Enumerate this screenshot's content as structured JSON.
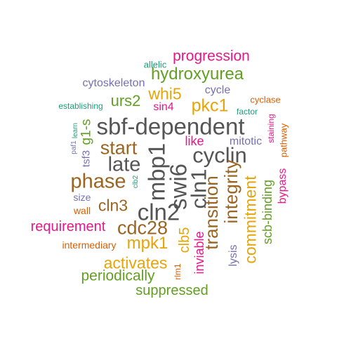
{
  "colors": {
    "gray": "#555555",
    "brown": "#9a6522",
    "green": "#62a023",
    "magenta": "#e6188a",
    "orange": "#e5a50a",
    "teal": "#1b9e77",
    "purple": "#7570b3",
    "rust": "#d95f02"
  },
  "words": [
    {
      "text": "progression",
      "color": "magenta"
    },
    {
      "text": "allelic",
      "color": "teal"
    },
    {
      "text": "hydroxyurea",
      "color": "green"
    },
    {
      "text": "cytoskeleton",
      "color": "purple"
    },
    {
      "text": "whi5",
      "color": "orange"
    },
    {
      "text": "cycle",
      "color": "purple"
    },
    {
      "text": "cyclase",
      "color": "rust"
    },
    {
      "text": "establishing",
      "color": "teal"
    },
    {
      "text": "urs2",
      "color": "green"
    },
    {
      "text": "sin4",
      "color": "magenta"
    },
    {
      "text": "pkc1",
      "color": "orange"
    },
    {
      "text": "factor",
      "color": "teal"
    },
    {
      "text": "sbf-dependent",
      "color": "gray"
    },
    {
      "text": "staining",
      "color": "magenta"
    },
    {
      "text": "pathway",
      "color": "rust"
    },
    {
      "text": "g1-s",
      "color": "green"
    },
    {
      "text": "learn",
      "color": "teal"
    },
    {
      "text": "paf1",
      "color": "purple"
    },
    {
      "text": "start",
      "color": "brown"
    },
    {
      "text": "like",
      "color": "magenta"
    },
    {
      "text": "mitotic",
      "color": "purple"
    },
    {
      "text": "late",
      "color": "gray"
    },
    {
      "text": "mbp1",
      "color": "gray"
    },
    {
      "text": "cyclin",
      "color": "gray"
    },
    {
      "text": "tsf3",
      "color": "purple"
    },
    {
      "text": "clb2",
      "color": "teal"
    },
    {
      "text": "phase",
      "color": "brown"
    },
    {
      "text": "swi6",
      "color": "gray"
    },
    {
      "text": "cln1",
      "color": "gray"
    },
    {
      "text": "integrity",
      "color": "brown"
    },
    {
      "text": "commitment",
      "color": "orange"
    },
    {
      "text": "scb-binding",
      "color": "green"
    },
    {
      "text": "bypass",
      "color": "magenta"
    },
    {
      "text": "size",
      "color": "purple"
    },
    {
      "text": "cln3",
      "color": "brown"
    },
    {
      "text": "wall",
      "color": "rust"
    },
    {
      "text": "cln2",
      "color": "gray"
    },
    {
      "text": "transition",
      "color": "brown"
    },
    {
      "text": "requirement",
      "color": "magenta"
    },
    {
      "text": "cdc28",
      "color": "brown"
    },
    {
      "text": "clb5",
      "color": "orange"
    },
    {
      "text": "intermediary",
      "color": "rust"
    },
    {
      "text": "mpk1",
      "color": "orange"
    },
    {
      "text": "inviable",
      "color": "magenta"
    },
    {
      "text": "lysis",
      "color": "purple"
    },
    {
      "text": "activates",
      "color": "orange"
    },
    {
      "text": "rlm1",
      "color": "rust"
    },
    {
      "text": "periodically",
      "color": "green"
    },
    {
      "text": "suppressed",
      "color": "green"
    }
  ]
}
